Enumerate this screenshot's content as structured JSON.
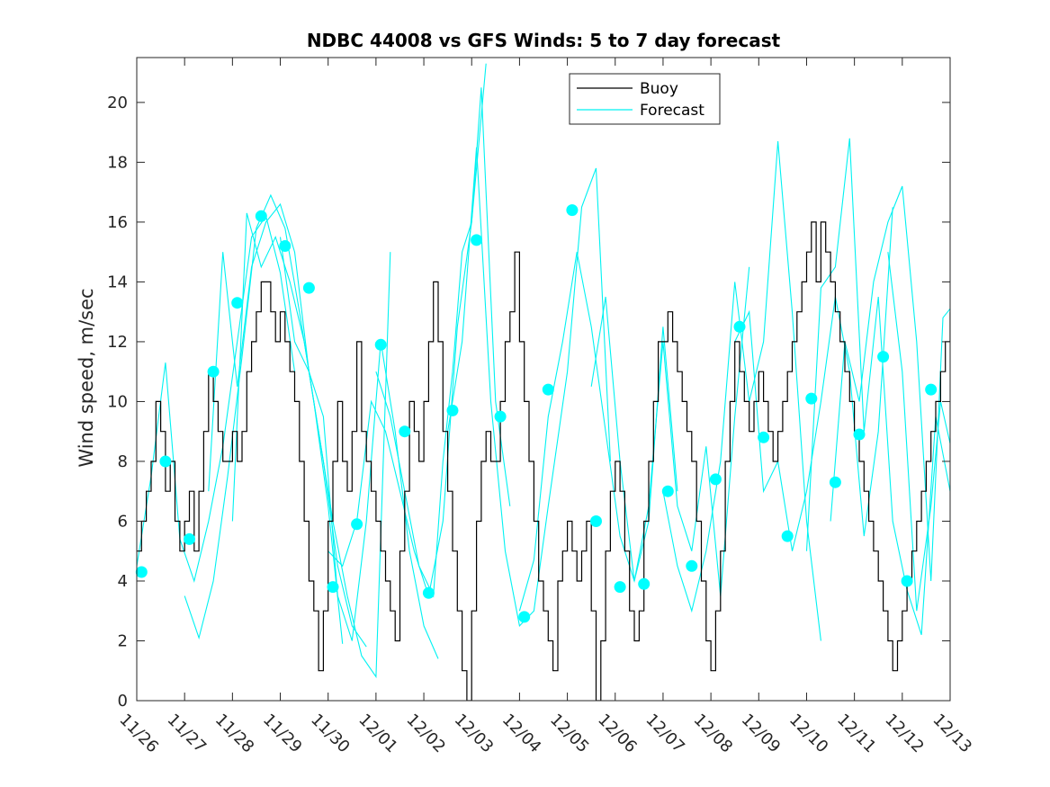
{
  "chart_data": {
    "type": "line",
    "title": "NDBC 44008 vs GFS Winds: 5 to 7 day forecast",
    "ylabel": "Wind speed, m/sec",
    "xlabel": "",
    "ylim": [
      0,
      21.5
    ],
    "yticks": [
      0,
      2,
      4,
      6,
      8,
      10,
      12,
      14,
      16,
      18,
      20
    ],
    "xlim": [
      0,
      17
    ],
    "xticks": [
      "11/26",
      "11/27",
      "11/28",
      "11/29",
      "11/30",
      "12/01",
      "12/02",
      "12/03",
      "12/04",
      "12/05",
      "12/06",
      "12/07",
      "12/08",
      "12/09",
      "12/10",
      "12/11",
      "12/12",
      "12/13"
    ],
    "legend": {
      "position": "top-center",
      "entries": [
        "Buoy",
        "Forecast"
      ]
    },
    "colors": {
      "buoy": "#000000",
      "forecast": "#00f2f2",
      "marker": "#00ffff"
    },
    "buoy": {
      "name": "Buoy",
      "x": [
        0.0,
        0.1,
        0.2,
        0.3,
        0.4,
        0.5,
        0.6,
        0.7,
        0.8,
        0.9,
        1.0,
        1.1,
        1.2,
        1.3,
        1.4,
        1.5,
        1.6,
        1.7,
        1.8,
        1.9,
        2.0,
        2.1,
        2.2,
        2.3,
        2.4,
        2.5,
        2.6,
        2.7,
        2.8,
        2.9,
        3.0,
        3.1,
        3.2,
        3.3,
        3.4,
        3.5,
        3.6,
        3.7,
        3.8,
        3.9,
        4.0,
        4.1,
        4.2,
        4.3,
        4.4,
        4.5,
        4.6,
        4.7,
        4.8,
        4.9,
        5.0,
        5.1,
        5.2,
        5.3,
        5.4,
        5.5,
        5.6,
        5.7,
        5.8,
        5.9,
        6.0,
        6.1,
        6.2,
        6.3,
        6.4,
        6.5,
        6.6,
        6.7,
        6.8,
        6.9,
        7.0,
        7.1,
        7.2,
        7.3,
        7.4,
        7.5,
        7.6,
        7.7,
        7.8,
        7.9,
        8.0,
        8.1,
        8.2,
        8.3,
        8.4,
        8.5,
        8.6,
        8.7,
        8.8,
        8.9,
        9.0,
        9.1,
        9.2,
        9.3,
        9.4,
        9.5,
        9.6,
        9.7,
        9.8,
        9.9,
        10.0,
        10.1,
        10.2,
        10.3,
        10.4,
        10.5,
        10.6,
        10.7,
        10.8,
        10.9,
        11.0,
        11.1,
        11.2,
        11.3,
        11.4,
        11.5,
        11.6,
        11.7,
        11.8,
        11.9,
        12.0,
        12.1,
        12.2,
        12.3,
        12.4,
        12.5,
        12.6,
        12.7,
        12.8,
        12.9,
        13.0,
        13.1,
        13.2,
        13.3,
        13.4,
        13.5,
        13.6,
        13.7,
        13.8,
        13.9,
        14.0,
        14.1,
        14.2,
        14.3,
        14.4,
        14.5,
        14.6,
        14.7,
        14.8,
        14.9,
        15.0,
        15.1,
        15.2,
        15.3,
        15.4,
        15.5,
        15.6,
        15.7,
        15.8,
        15.9,
        16.0,
        16.1,
        16.2,
        16.3,
        16.4,
        16.5,
        16.6,
        16.7,
        16.8,
        16.9,
        17.0
      ],
      "values": [
        5,
        6,
        7,
        8,
        10,
        9,
        7,
        8,
        6,
        5,
        6,
        7,
        5,
        7,
        9,
        11,
        10,
        9,
        8,
        8,
        9,
        8,
        9,
        11,
        12,
        13,
        14,
        14,
        13,
        12,
        13,
        12,
        11,
        10,
        8,
        6,
        4,
        3,
        1,
        3,
        6,
        8,
        10,
        8,
        7,
        9,
        12,
        9,
        8,
        7,
        6,
        5,
        4,
        3,
        2,
        5,
        7,
        10,
        9,
        8,
        10,
        12,
        14,
        12,
        9,
        7,
        5,
        3,
        1,
        0,
        3,
        6,
        8,
        9,
        8,
        8,
        10,
        12,
        13,
        15,
        12,
        10,
        8,
        6,
        4,
        3,
        2,
        1,
        4,
        5,
        6,
        5,
        4,
        5,
        6,
        3,
        0,
        2,
        5,
        7,
        8,
        7,
        5,
        3,
        2,
        3,
        6,
        8,
        10,
        12,
        12,
        13,
        12,
        11,
        10,
        9,
        8,
        6,
        4,
        2,
        1,
        3,
        5,
        8,
        10,
        12,
        11,
        10,
        9,
        10,
        11,
        10,
        9,
        8,
        9,
        10,
        11,
        12,
        13,
        14,
        15,
        16,
        14,
        16,
        15,
        14,
        13,
        12,
        11,
        10,
        9,
        8,
        7,
        6,
        5,
        4,
        3,
        2,
        1,
        2,
        3,
        4,
        5,
        6,
        7,
        8,
        9,
        10,
        11,
        12,
        13
      ]
    },
    "forecast_series": [
      {
        "name": "Forecast",
        "x": [
          0.0,
          0.3,
          0.6,
          0.9,
          1.2,
          1.5,
          1.8,
          2.1,
          2.4,
          2.7,
          3.0,
          3.3
        ],
        "values": [
          4.5,
          7.5,
          11.3,
          5.4,
          4.0,
          6.0,
          8.5,
          12.0,
          15.5,
          16.2,
          14.3,
          11.0
        ]
      },
      {
        "name": "Forecast",
        "x": [
          1.0,
          1.3,
          1.6,
          1.9,
          2.2,
          2.5,
          2.8,
          3.1,
          3.4,
          3.7,
          4.0,
          4.3
        ],
        "values": [
          3.5,
          2.1,
          4.0,
          7.5,
          11.5,
          15.8,
          16.9,
          15.8,
          13.0,
          10.0,
          6.5,
          1.9
        ]
      },
      {
        "name": "Forecast",
        "x": [
          1.5,
          1.8,
          2.1,
          2.4,
          2.7,
          3.0,
          3.3,
          3.6,
          3.9,
          4.2,
          4.5,
          4.8
        ],
        "values": [
          7.0,
          15.0,
          10.5,
          14.5,
          16.0,
          16.6,
          15.0,
          11.0,
          8.0,
          4.5,
          2.5,
          1.8
        ]
      },
      {
        "name": "Forecast",
        "x": [
          2.0,
          2.3,
          2.6,
          2.9,
          3.2,
          3.5,
          3.8,
          4.1,
          4.4,
          4.7,
          5.0,
          5.3
        ],
        "values": [
          6.0,
          16.3,
          14.5,
          15.5,
          14.0,
          12.0,
          9.0,
          6.0,
          3.5,
          1.5,
          0.8,
          15.0
        ]
      },
      {
        "name": "Forecast",
        "x": [
          3.0,
          3.3,
          3.6,
          3.9,
          4.2,
          4.5,
          4.8,
          5.1,
          5.4,
          5.7,
          6.0,
          6.3
        ],
        "values": [
          15.5,
          12.0,
          11.0,
          9.5,
          3.5,
          2.0,
          6.0,
          12.0,
          9.0,
          5.0,
          2.5,
          1.4
        ]
      },
      {
        "name": "Forecast",
        "x": [
          4.0,
          4.3,
          4.6,
          4.9,
          5.2,
          5.5,
          5.8,
          6.1,
          6.4,
          6.7,
          7.0,
          7.3
        ],
        "values": [
          5.0,
          4.5,
          6.0,
          10.0,
          9.0,
          7.0,
          5.0,
          3.5,
          6.0,
          12.5,
          16.0,
          21.3
        ]
      },
      {
        "name": "Forecast",
        "x": [
          5.0,
          5.3,
          5.6,
          5.9,
          6.2,
          6.4,
          6.6,
          6.8,
          7.0,
          7.2,
          7.5,
          7.8
        ],
        "values": [
          11.0,
          9.5,
          7.0,
          4.5,
          3.5,
          8.0,
          11.0,
          15.0,
          16.0,
          20.5,
          10.0,
          6.5
        ]
      },
      {
        "name": "Forecast",
        "x": [
          6.5,
          6.8,
          7.1,
          7.4,
          7.7,
          8.0,
          8.3,
          8.6,
          9.0,
          9.3,
          9.6,
          9.9
        ],
        "values": [
          9.0,
          12.0,
          18.5,
          10.0,
          5.0,
          2.5,
          3.0,
          6.5,
          11.0,
          16.5,
          17.8,
          8.0
        ]
      },
      {
        "name": "Forecast",
        "x": [
          8.0,
          8.3,
          8.6,
          8.9,
          9.2,
          9.5,
          9.8,
          10.1,
          10.4,
          10.7,
          11.0,
          11.3
        ],
        "values": [
          3.0,
          4.7,
          9.5,
          12.0,
          15.0,
          12.5,
          9.0,
          5.5,
          4.0,
          6.0,
          12.5,
          7.0
        ]
      },
      {
        "name": "Forecast",
        "x": [
          9.5,
          9.8,
          10.1,
          10.4,
          10.7,
          11.0,
          11.3,
          11.6,
          11.9,
          12.2,
          12.5,
          12.8
        ],
        "values": [
          10.5,
          13.5,
          8.0,
          4.0,
          6.5,
          12.0,
          6.5,
          5.0,
          8.5,
          3.5,
          9.5,
          14.5
        ]
      },
      {
        "name": "Forecast",
        "x": [
          11.0,
          11.3,
          11.6,
          11.9,
          12.2,
          12.5,
          12.8,
          13.1,
          13.4,
          13.7,
          14.0,
          14.3
        ],
        "values": [
          7.0,
          4.5,
          3.0,
          5.0,
          8.0,
          14.0,
          10.0,
          12.0,
          18.7,
          13.0,
          6.0,
          2.0
        ]
      },
      {
        "name": "Forecast",
        "x": [
          12.5,
          12.8,
          13.1,
          13.4,
          13.7,
          14.0,
          14.3,
          14.6,
          14.9,
          15.2,
          15.5,
          15.8
        ],
        "values": [
          12.0,
          13.0,
          7.0,
          8.0,
          5.0,
          7.0,
          10.0,
          13.5,
          11.0,
          5.5,
          9.0,
          16.5
        ]
      },
      {
        "name": "Forecast",
        "x": [
          14.0,
          14.3,
          14.6,
          14.9,
          15.2,
          15.5,
          15.8,
          16.1,
          16.4,
          16.7,
          17.0
        ],
        "values": [
          5.0,
          13.8,
          14.5,
          18.8,
          9.0,
          13.5,
          6.0,
          3.7,
          2.2,
          9.5,
          7.0
        ]
      },
      {
        "name": "Forecast",
        "x": [
          14.5,
          14.8,
          15.1,
          15.4,
          15.7,
          16.0,
          16.3,
          16.6,
          16.85,
          17.0
        ],
        "values": [
          6.0,
          12.0,
          10.0,
          14.0,
          16.0,
          17.2,
          12.0,
          4.0,
          12.8,
          13.1
        ]
      },
      {
        "name": "Forecast",
        "x": [
          15.7,
          16.0,
          16.3,
          16.6,
          16.8,
          17.0
        ],
        "values": [
          15.0,
          11.0,
          3.0,
          6.5,
          10.0,
          8.6
        ]
      }
    ],
    "analysis_points": {
      "x": [
        0.1,
        0.6,
        1.1,
        1.6,
        2.1,
        2.6,
        3.1,
        3.6,
        4.1,
        4.6,
        5.1,
        5.6,
        6.1,
        6.6,
        7.1,
        7.6,
        8.1,
        8.6,
        9.1,
        9.6,
        10.1,
        10.6,
        11.1,
        11.6,
        12.1,
        12.6,
        13.1,
        13.6,
        14.1,
        14.6,
        15.1,
        15.6,
        16.1,
        16.6
      ],
      "values": [
        4.3,
        8.0,
        5.4,
        11.0,
        13.3,
        16.2,
        15.2,
        13.8,
        3.8,
        5.9,
        11.9,
        9.0,
        3.6,
        9.7,
        15.4,
        9.5,
        2.8,
        10.4,
        16.4,
        6.0,
        3.8,
        3.9,
        7.0,
        4.5,
        7.4,
        12.5,
        8.8,
        5.5,
        10.1,
        7.3,
        8.9,
        11.5,
        4.0,
        10.4
      ]
    }
  }
}
